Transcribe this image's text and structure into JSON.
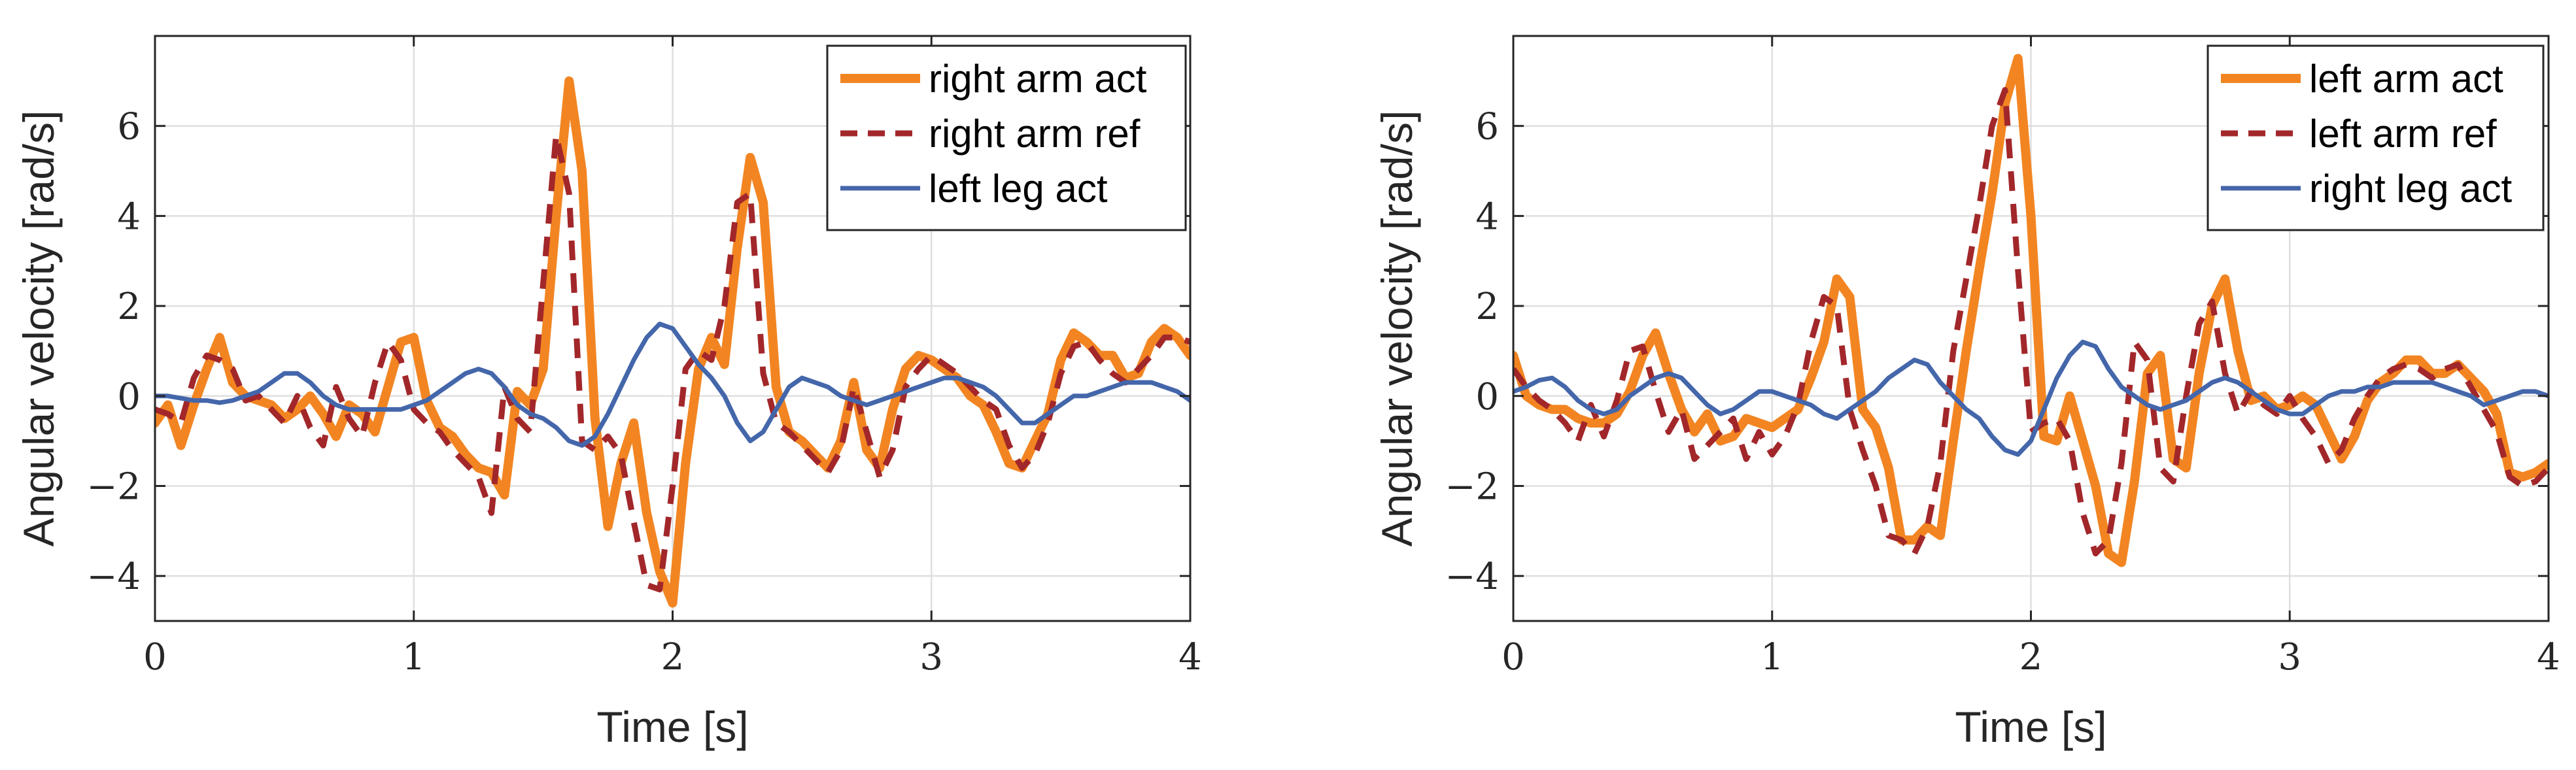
{
  "chart_data": [
    {
      "type": "line",
      "title": "",
      "xlabel": "Time [s]",
      "ylabel": "Angular velocity [rad/s]",
      "xlim": [
        0,
        4
      ],
      "ylim": [
        -5,
        8
      ],
      "xticks": [
        "0",
        "1",
        "2",
        "3",
        "4"
      ],
      "yticks": [
        "−4",
        "−2",
        "0",
        "2",
        "4",
        "6"
      ],
      "grid": true,
      "legend_position": "top-right",
      "series": [
        {
          "name": "right arm act",
          "color": "#f28522",
          "style": "solid-thick",
          "x": [
            0,
            0.05,
            0.1,
            0.15,
            0.2,
            0.25,
            0.3,
            0.35,
            0.4,
            0.45,
            0.5,
            0.55,
            0.6,
            0.65,
            0.7,
            0.75,
            0.8,
            0.85,
            0.9,
            0.95,
            1.0,
            1.05,
            1.1,
            1.15,
            1.2,
            1.25,
            1.3,
            1.35,
            1.4,
            1.45,
            1.5,
            1.55,
            1.6,
            1.65,
            1.7,
            1.75,
            1.8,
            1.85,
            1.9,
            1.95,
            2.0,
            2.05,
            2.1,
            2.15,
            2.2,
            2.25,
            2.3,
            2.35,
            2.4,
            2.45,
            2.5,
            2.55,
            2.6,
            2.65,
            2.7,
            2.75,
            2.8,
            2.85,
            2.9,
            2.95,
            3.0,
            3.05,
            3.1,
            3.15,
            3.2,
            3.25,
            3.3,
            3.35,
            3.4,
            3.45,
            3.5,
            3.55,
            3.6,
            3.65,
            3.7,
            3.75,
            3.8,
            3.85,
            3.9,
            3.95,
            4.0
          ],
          "values": [
            -0.6,
            -0.2,
            -1.1,
            -0.2,
            0.6,
            1.3,
            0.3,
            0.0,
            -0.1,
            -0.2,
            -0.5,
            -0.3,
            0.0,
            -0.4,
            -0.9,
            -0.2,
            -0.4,
            -0.8,
            0.2,
            1.2,
            1.3,
            -0.1,
            -0.7,
            -0.9,
            -1.3,
            -1.6,
            -1.7,
            -2.2,
            0.1,
            -0.2,
            0.6,
            4.0,
            7.0,
            5.0,
            -0.5,
            -2.9,
            -1.5,
            -0.6,
            -2.6,
            -3.9,
            -4.6,
            -1.5,
            0.6,
            1.3,
            0.7,
            3.3,
            5.3,
            4.3,
            0.2,
            -0.8,
            -1.0,
            -1.3,
            -1.6,
            -1.0,
            0.3,
            -1.2,
            -1.6,
            -0.3,
            0.6,
            0.9,
            0.8,
            0.6,
            0.4,
            0.0,
            -0.2,
            -0.8,
            -1.5,
            -1.6,
            -1.0,
            -0.4,
            0.8,
            1.4,
            1.2,
            0.9,
            0.9,
            0.4,
            0.5,
            1.2,
            1.5,
            1.3,
            0.9
          ]
        },
        {
          "name": "right arm ref",
          "color": "#a2272a",
          "style": "dashed",
          "x": [
            0,
            0.05,
            0.1,
            0.15,
            0.2,
            0.25,
            0.3,
            0.35,
            0.4,
            0.45,
            0.5,
            0.55,
            0.6,
            0.65,
            0.7,
            0.75,
            0.8,
            0.85,
            0.9,
            0.95,
            1.0,
            1.05,
            1.1,
            1.15,
            1.2,
            1.25,
            1.3,
            1.35,
            1.4,
            1.45,
            1.5,
            1.55,
            1.6,
            1.65,
            1.7,
            1.75,
            1.8,
            1.85,
            1.9,
            1.95,
            2.0,
            2.05,
            2.1,
            2.15,
            2.2,
            2.25,
            2.3,
            2.35,
            2.4,
            2.45,
            2.5,
            2.55,
            2.6,
            2.65,
            2.7,
            2.75,
            2.8,
            2.85,
            2.9,
            2.95,
            3.0,
            3.05,
            3.1,
            3.15,
            3.2,
            3.25,
            3.3,
            3.35,
            3.4,
            3.45,
            3.5,
            3.55,
            3.6,
            3.65,
            3.7,
            3.75,
            3.8,
            3.85,
            3.9,
            3.95,
            4.0
          ],
          "values": [
            -0.3,
            -0.4,
            -0.6,
            0.4,
            0.9,
            0.8,
            0.6,
            -0.1,
            0.0,
            -0.3,
            -0.6,
            0.0,
            -0.7,
            -1.1,
            0.2,
            -0.5,
            -0.9,
            0.3,
            1.2,
            0.8,
            -0.3,
            -0.6,
            -0.8,
            -1.2,
            -1.5,
            -1.8,
            -2.6,
            0.2,
            -0.5,
            -0.8,
            2.5,
            5.8,
            4.5,
            -1.0,
            -1.2,
            -0.9,
            -1.3,
            -2.8,
            -4.2,
            -4.3,
            -2.0,
            0.6,
            1.0,
            0.8,
            2.0,
            4.3,
            4.5,
            0.5,
            -0.6,
            -0.8,
            -1.1,
            -1.4,
            -1.7,
            -1.2,
            0.2,
            -0.8,
            -1.8,
            -1.2,
            0.2,
            0.6,
            0.9,
            0.7,
            0.5,
            0.2,
            -0.1,
            -0.3,
            -1.1,
            -1.6,
            -1.3,
            -0.6,
            0.5,
            1.1,
            1.2,
            0.8,
            0.5,
            0.3,
            0.6,
            0.9,
            1.3,
            1.3,
            1.2
          ]
        },
        {
          "name": "left leg act",
          "color": "#4466aa",
          "style": "solid",
          "x": [
            0,
            0.05,
            0.1,
            0.15,
            0.2,
            0.25,
            0.3,
            0.35,
            0.4,
            0.45,
            0.5,
            0.55,
            0.6,
            0.65,
            0.7,
            0.75,
            0.8,
            0.85,
            0.9,
            0.95,
            1.0,
            1.05,
            1.1,
            1.15,
            1.2,
            1.25,
            1.3,
            1.35,
            1.4,
            1.45,
            1.5,
            1.55,
            1.6,
            1.65,
            1.7,
            1.75,
            1.8,
            1.85,
            1.9,
            1.95,
            2.0,
            2.05,
            2.1,
            2.15,
            2.2,
            2.25,
            2.3,
            2.35,
            2.4,
            2.45,
            2.5,
            2.55,
            2.6,
            2.65,
            2.7,
            2.75,
            2.8,
            2.85,
            2.9,
            2.95,
            3.0,
            3.05,
            3.1,
            3.15,
            3.2,
            3.25,
            3.3,
            3.35,
            3.4,
            3.45,
            3.5,
            3.55,
            3.6,
            3.65,
            3.7,
            3.75,
            3.8,
            3.85,
            3.9,
            3.95,
            4.0
          ],
          "values": [
            0.0,
            0.0,
            -0.05,
            -0.1,
            -0.1,
            -0.15,
            -0.1,
            0.0,
            0.1,
            0.3,
            0.5,
            0.5,
            0.3,
            0.0,
            -0.2,
            -0.3,
            -0.3,
            -0.3,
            -0.3,
            -0.3,
            -0.2,
            -0.1,
            0.1,
            0.3,
            0.5,
            0.6,
            0.5,
            0.2,
            -0.2,
            -0.4,
            -0.5,
            -0.7,
            -1.0,
            -1.1,
            -0.9,
            -0.4,
            0.2,
            0.8,
            1.3,
            1.6,
            1.5,
            1.1,
            0.7,
            0.4,
            0.0,
            -0.6,
            -1.0,
            -0.8,
            -0.3,
            0.2,
            0.4,
            0.3,
            0.2,
            0.0,
            -0.1,
            -0.2,
            -0.1,
            0.0,
            0.1,
            0.2,
            0.3,
            0.4,
            0.4,
            0.3,
            0.2,
            0.0,
            -0.3,
            -0.6,
            -0.6,
            -0.4,
            -0.2,
            0.0,
            0.0,
            0.1,
            0.2,
            0.3,
            0.3,
            0.3,
            0.2,
            0.1,
            -0.1
          ]
        }
      ]
    },
    {
      "type": "line",
      "title": "",
      "xlabel": "Time [s]",
      "ylabel": "Angular velocity [rad/s]",
      "xlim": [
        0,
        4
      ],
      "ylim": [
        -5,
        8
      ],
      "xticks": [
        "0",
        "1",
        "2",
        "3",
        "4"
      ],
      "yticks": [
        "−4",
        "−2",
        "0",
        "2",
        "4",
        "6"
      ],
      "grid": true,
      "legend_position": "top-right",
      "series": [
        {
          "name": "left arm act",
          "color": "#f28522",
          "style": "solid-thick",
          "x": [
            0,
            0.05,
            0.1,
            0.15,
            0.2,
            0.25,
            0.3,
            0.35,
            0.4,
            0.45,
            0.5,
            0.55,
            0.6,
            0.65,
            0.7,
            0.75,
            0.8,
            0.85,
            0.9,
            0.95,
            1.0,
            1.05,
            1.1,
            1.15,
            1.2,
            1.25,
            1.3,
            1.35,
            1.4,
            1.45,
            1.5,
            1.55,
            1.6,
            1.65,
            1.7,
            1.75,
            1.8,
            1.85,
            1.9,
            1.95,
            2.0,
            2.05,
            2.1,
            2.15,
            2.2,
            2.25,
            2.3,
            2.35,
            2.4,
            2.45,
            2.5,
            2.55,
            2.6,
            2.65,
            2.7,
            2.75,
            2.8,
            2.85,
            2.9,
            2.95,
            3.0,
            3.05,
            3.1,
            3.15,
            3.2,
            3.25,
            3.3,
            3.35,
            3.4,
            3.45,
            3.5,
            3.55,
            3.6,
            3.65,
            3.7,
            3.75,
            3.8,
            3.85,
            3.9,
            3.95,
            4.0
          ],
          "values": [
            0.9,
            0.0,
            -0.2,
            -0.3,
            -0.3,
            -0.5,
            -0.6,
            -0.6,
            -0.4,
            0.1,
            0.9,
            1.4,
            0.5,
            -0.3,
            -0.8,
            -0.4,
            -1.0,
            -0.9,
            -0.5,
            -0.6,
            -0.7,
            -0.5,
            -0.3,
            0.4,
            1.2,
            2.6,
            2.2,
            -0.3,
            -0.7,
            -1.6,
            -3.2,
            -3.2,
            -2.9,
            -3.1,
            -1.0,
            1.0,
            2.8,
            4.5,
            6.5,
            7.5,
            4.0,
            -0.9,
            -1.0,
            0.0,
            -1.0,
            -2.0,
            -3.5,
            -3.7,
            -1.9,
            0.5,
            0.9,
            -1.4,
            -1.6,
            0.5,
            2.0,
            2.6,
            1.0,
            -0.1,
            0.0,
            -0.3,
            -0.2,
            0.0,
            -0.2,
            -0.8,
            -1.4,
            -0.9,
            -0.1,
            0.3,
            0.5,
            0.8,
            0.8,
            0.5,
            0.5,
            0.7,
            0.4,
            0.1,
            -0.4,
            -1.7,
            -1.8,
            -1.7,
            -1.5
          ]
        },
        {
          "name": "left arm ref",
          "color": "#a2272a",
          "style": "dashed",
          "x": [
            0,
            0.05,
            0.1,
            0.15,
            0.2,
            0.25,
            0.3,
            0.35,
            0.4,
            0.45,
            0.5,
            0.55,
            0.6,
            0.65,
            0.7,
            0.75,
            0.8,
            0.85,
            0.9,
            0.95,
            1.0,
            1.05,
            1.1,
            1.15,
            1.2,
            1.25,
            1.3,
            1.35,
            1.4,
            1.45,
            1.5,
            1.55,
            1.6,
            1.65,
            1.7,
            1.75,
            1.8,
            1.85,
            1.9,
            1.95,
            2.0,
            2.05,
            2.1,
            2.15,
            2.2,
            2.25,
            2.3,
            2.35,
            2.4,
            2.45,
            2.5,
            2.55,
            2.6,
            2.65,
            2.7,
            2.75,
            2.8,
            2.85,
            2.9,
            2.95,
            3.0,
            3.05,
            3.1,
            3.15,
            3.2,
            3.25,
            3.3,
            3.35,
            3.4,
            3.45,
            3.5,
            3.55,
            3.6,
            3.65,
            3.7,
            3.75,
            3.8,
            3.85,
            3.9,
            3.95,
            4.0
          ],
          "values": [
            0.6,
            0.2,
            -0.1,
            -0.3,
            -0.6,
            -1.0,
            -0.2,
            -0.9,
            -0.1,
            1.0,
            1.1,
            0.1,
            -0.8,
            -0.3,
            -1.4,
            -1.1,
            -0.8,
            -0.5,
            -1.4,
            -0.8,
            -1.3,
            -0.9,
            -0.2,
            1.2,
            2.2,
            2.0,
            -0.3,
            -1.2,
            -2.0,
            -3.1,
            -3.2,
            -3.5,
            -2.9,
            -1.5,
            1.0,
            2.6,
            4.2,
            6.0,
            6.8,
            2.8,
            -0.8,
            -0.6,
            -0.5,
            -1.0,
            -2.6,
            -3.5,
            -3.2,
            -1.5,
            1.2,
            0.8,
            -1.6,
            -1.9,
            0.0,
            1.6,
            2.1,
            0.5,
            -0.4,
            0.1,
            -0.2,
            -0.4,
            0.0,
            -0.5,
            -0.9,
            -1.5,
            -1.2,
            -0.5,
            0.0,
            0.4,
            0.6,
            0.7,
            0.6,
            0.4,
            0.6,
            0.7,
            0.2,
            -0.3,
            -0.8,
            -1.8,
            -2.0,
            -1.9,
            -1.6
          ]
        },
        {
          "name": "right leg act",
          "color": "#4466aa",
          "style": "solid",
          "x": [
            0,
            0.05,
            0.1,
            0.15,
            0.2,
            0.25,
            0.3,
            0.35,
            0.4,
            0.45,
            0.5,
            0.55,
            0.6,
            0.65,
            0.7,
            0.75,
            0.8,
            0.85,
            0.9,
            0.95,
            1.0,
            1.05,
            1.1,
            1.15,
            1.2,
            1.25,
            1.3,
            1.35,
            1.4,
            1.45,
            1.5,
            1.55,
            1.6,
            1.65,
            1.7,
            1.75,
            1.8,
            1.85,
            1.9,
            1.95,
            2.0,
            2.05,
            2.1,
            2.15,
            2.2,
            2.25,
            2.3,
            2.35,
            2.4,
            2.45,
            2.5,
            2.55,
            2.6,
            2.65,
            2.7,
            2.75,
            2.8,
            2.85,
            2.9,
            2.95,
            3.0,
            3.05,
            3.1,
            3.15,
            3.2,
            3.25,
            3.3,
            3.35,
            3.4,
            3.45,
            3.5,
            3.55,
            3.6,
            3.65,
            3.7,
            3.75,
            3.8,
            3.85,
            3.9,
            3.95,
            4.0
          ],
          "values": [
            0.1,
            0.2,
            0.35,
            0.4,
            0.2,
            -0.1,
            -0.3,
            -0.4,
            -0.3,
            0.0,
            0.2,
            0.4,
            0.5,
            0.4,
            0.1,
            -0.2,
            -0.4,
            -0.3,
            -0.1,
            0.1,
            0.1,
            0.0,
            -0.1,
            -0.2,
            -0.4,
            -0.5,
            -0.3,
            -0.1,
            0.1,
            0.4,
            0.6,
            0.8,
            0.7,
            0.3,
            0.0,
            -0.3,
            -0.5,
            -0.9,
            -1.2,
            -1.3,
            -1.0,
            -0.3,
            0.4,
            0.9,
            1.2,
            1.1,
            0.6,
            0.2,
            0.0,
            -0.2,
            -0.3,
            -0.2,
            -0.1,
            0.1,
            0.3,
            0.4,
            0.3,
            0.1,
            -0.1,
            -0.3,
            -0.4,
            -0.4,
            -0.2,
            0.0,
            0.1,
            0.1,
            0.2,
            0.2,
            0.3,
            0.3,
            0.3,
            0.3,
            0.2,
            0.1,
            0.0,
            -0.2,
            -0.1,
            0.0,
            0.1,
            0.1,
            0.0
          ]
        }
      ]
    }
  ]
}
